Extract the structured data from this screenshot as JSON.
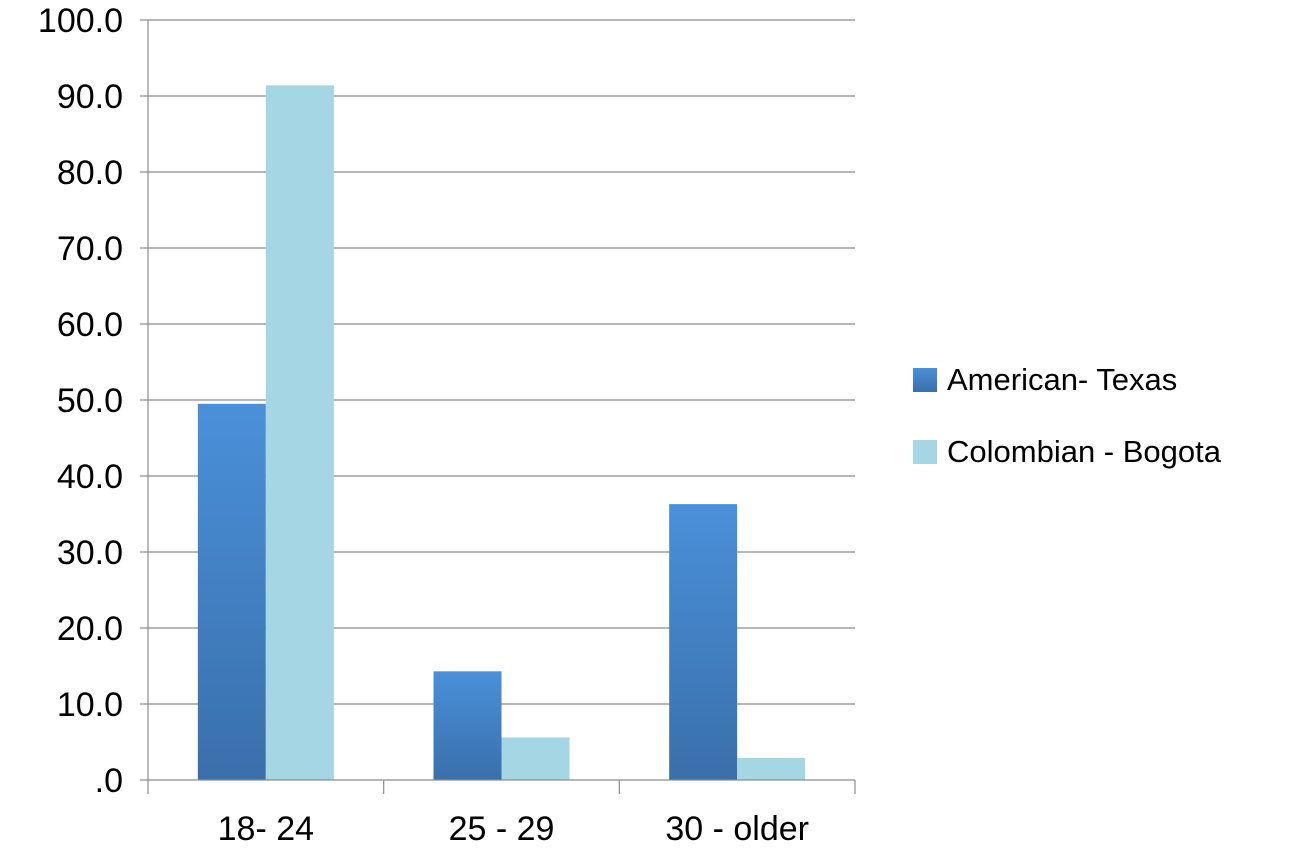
{
  "chart_data": {
    "type": "bar",
    "categories": [
      "18- 24",
      "25 - 29",
      "30 - older"
    ],
    "series": [
      {
        "name": "American- Texas",
        "values": [
          49.5,
          14.3,
          36.3
        ],
        "color": "#4a90d9",
        "color_dark": "#3a6fab"
      },
      {
        "name": "Colombian - Bogota",
        "values": [
          91.4,
          5.6,
          2.9
        ],
        "color": "#a5d6e4"
      }
    ],
    "title": "",
    "xlabel": "",
    "ylabel": "",
    "ylim": [
      0,
      100
    ],
    "ytick_values": [
      0,
      10,
      20,
      30,
      40,
      50,
      60,
      70,
      80,
      90,
      100
    ],
    "ytick_labels": [
      ".0",
      "10.0",
      "20.0",
      "30.0",
      "40.0",
      "50.0",
      "60.0",
      "70.0",
      "80.0",
      "90.0",
      "100.0"
    ],
    "grid": true,
    "legend_position": "right"
  }
}
